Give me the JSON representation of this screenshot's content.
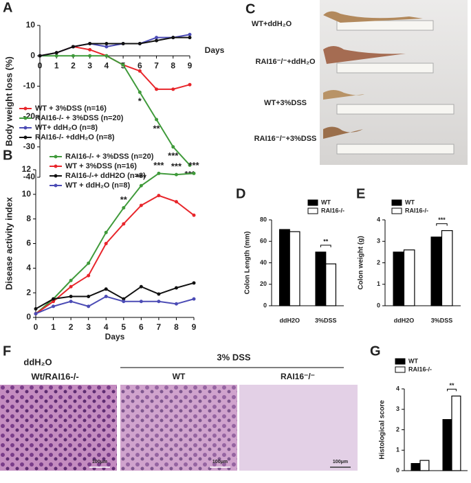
{
  "chart_data": [
    {
      "label": "A",
      "type": "line",
      "ylabel": "Body weight loss (%)",
      "xlabel": "Days",
      "x": [
        0,
        1,
        2,
        3,
        4,
        5,
        6,
        7,
        8,
        9
      ],
      "xlim": [
        0,
        9
      ],
      "xticks": [
        0,
        1,
        2,
        3,
        4,
        5,
        6,
        7,
        8,
        9
      ],
      "ylim": [
        -40,
        10
      ],
      "yticks": [
        -40,
        -30,
        -20,
        -10,
        0,
        10
      ],
      "series": [
        {
          "name": "WT + 3%DSS (n=16)",
          "color": "#e8262b",
          "values": [
            0,
            1,
            3,
            2,
            0,
            -3,
            -5,
            -11,
            -11,
            -9.5
          ]
        },
        {
          "name": "RAI16-/- + 3%DSS (n=20)",
          "color": "#3f9a3a",
          "values": [
            0,
            0,
            0,
            0,
            0,
            -3,
            -12,
            -21,
            -30,
            -36
          ]
        },
        {
          "name": "WT+ ddH₂O (n=8)",
          "color": "#4b4bb5",
          "values": [
            0,
            1,
            3,
            4,
            3,
            4,
            4,
            6,
            6,
            7
          ]
        },
        {
          "name": "RAI16-/- +ddH₂O (n=8)",
          "color": "#111111",
          "values": [
            0,
            1,
            3,
            4,
            4,
            4,
            4,
            5,
            6,
            6
          ]
        }
      ],
      "annotations": [
        "*",
        "**",
        "***",
        "***"
      ]
    },
    {
      "label": "B",
      "type": "line",
      "ylabel": "Disease activity index",
      "xlabel": "Days",
      "x": [
        0,
        1,
        2,
        3,
        4,
        5,
        6,
        7,
        8,
        9
      ],
      "xlim": [
        0,
        9
      ],
      "xticks": [
        0,
        1,
        2,
        3,
        4,
        5,
        6,
        7,
        8,
        9
      ],
      "ylim": [
        0,
        12
      ],
      "yticks": [
        0,
        2,
        4,
        6,
        8,
        10,
        12
      ],
      "series": [
        {
          "name": "RAI16-/- + 3%DSS (n=20)",
          "color": "#3f9a3a",
          "values": [
            0.3,
            1.5,
            3,
            4.4,
            6.9,
            8.9,
            10.7,
            11.7,
            11.6,
            11.7
          ]
        },
        {
          "name": "WT + 3%DSS (n=16)",
          "color": "#e8262b",
          "values": [
            0.3,
            1.3,
            2.5,
            3.4,
            6,
            7.6,
            9.1,
            9.9,
            9.4,
            8.3
          ]
        },
        {
          "name": "RAI16-/-+ ddH2O (n=8)",
          "color": "#111111",
          "values": [
            0.7,
            1.5,
            1.7,
            1.7,
            2.3,
            1.5,
            2.5,
            1.9,
            2.4,
            2.8
          ]
        },
        {
          "name": "WT + ddH₂O (n=8)",
          "color": "#4b4bb5",
          "values": [
            0.3,
            0.9,
            1.3,
            0.9,
            1.7,
            1.3,
            1.3,
            1.3,
            1.1,
            1.5
          ]
        }
      ],
      "annotations": [
        "**",
        "***",
        "***",
        "***",
        "***"
      ]
    },
    {
      "label": "D",
      "type": "bar",
      "ylabel": "Colon Length (mm)",
      "categories": [
        "ddH2O",
        "3%DSS"
      ],
      "ylim": [
        0,
        80
      ],
      "yticks": [
        0,
        20,
        40,
        60,
        80
      ],
      "series": [
        {
          "name": "WT",
          "color": "#000000",
          "values": [
            71,
            50
          ]
        },
        {
          "name": "RAI16-/-",
          "color": "#ffffff",
          "values": [
            69,
            39
          ]
        }
      ],
      "annotations": [
        "**"
      ]
    },
    {
      "label": "E",
      "type": "bar",
      "ylabel": "Colon weight (g)",
      "categories": [
        "ddH2O",
        "3%DSS"
      ],
      "ylim": [
        0,
        4
      ],
      "yticks": [
        0,
        1,
        2,
        3,
        4
      ],
      "series": [
        {
          "name": "WT",
          "color": "#000000",
          "values": [
            2.5,
            3.2
          ]
        },
        {
          "name": "RAI16-/-",
          "color": "#ffffff",
          "values": [
            2.6,
            3.5
          ]
        }
      ],
      "annotations": [
        "***"
      ]
    },
    {
      "label": "G",
      "type": "bar",
      "ylabel": "Histological score",
      "categories": [
        "ddH2O",
        "3%DSS"
      ],
      "ylim": [
        0,
        4
      ],
      "yticks": [
        0,
        1,
        2,
        3,
        4
      ],
      "series": [
        {
          "name": "WT",
          "color": "#000000",
          "values": [
            0.35,
            2.5
          ]
        },
        {
          "name": "RAI16-/-",
          "color": "#ffffff",
          "values": [
            0.5,
            3.65
          ]
        }
      ],
      "annotations": [
        "**"
      ]
    }
  ],
  "photo_c": {
    "label": "C",
    "rows": [
      "WT+ddH₂O",
      "RAI16⁻/⁻+ddH₂O",
      "WT+3%DSS",
      "RAI16⁻/⁻+3%DSS"
    ]
  },
  "photo_f": {
    "label": "F",
    "control": "ddH₂O",
    "control_group": "Wt/RAI16-/-",
    "treatment": "3% DSS",
    "columns": [
      "WT",
      "RAI16⁻/⁻"
    ],
    "scale_bars": [
      "100μm",
      "100μm",
      "100μm"
    ]
  }
}
